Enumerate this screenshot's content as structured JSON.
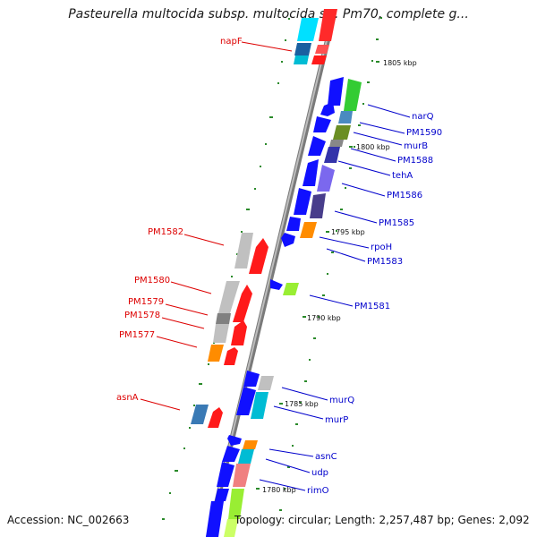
{
  "header": {
    "title": "Pasteurella multocida subsp. multocida str. Pm70, complete g..."
  },
  "footer": {
    "accession": "Accession: NC_002663",
    "summary": "Topology: circular; Length: 2,257,487 bp; Genes: 2,092"
  },
  "scale": [
    {
      "label": "1805 kbp"
    },
    {
      "label": "1800 kbp"
    },
    {
      "label": "1795 kbp"
    },
    {
      "label": "1790 kbp"
    },
    {
      "label": "1785 kbp"
    },
    {
      "label": "1780 kbp"
    }
  ],
  "colors": {
    "reverse_label": "#dd0000",
    "forward_label": "#0000cc",
    "backbone": "#888888",
    "tick": "#2a8a2a"
  },
  "genes_reverse": [
    {
      "name": "napF"
    },
    {
      "name": "PM1582"
    },
    {
      "name": "PM1580"
    },
    {
      "name": "PM1579"
    },
    {
      "name": "PM1578"
    },
    {
      "name": "PM1577"
    },
    {
      "name": "asnA"
    }
  ],
  "genes_forward": [
    {
      "name": "narQ"
    },
    {
      "name": "PM1590"
    },
    {
      "name": "murB"
    },
    {
      "name": "PM1588"
    },
    {
      "name": "tehA"
    },
    {
      "name": "PM1586"
    },
    {
      "name": "PM1585"
    },
    {
      "name": "rpoH"
    },
    {
      "name": "PM1583"
    },
    {
      "name": "PM1581"
    },
    {
      "name": "murQ"
    },
    {
      "name": "murP"
    },
    {
      "name": "asnC"
    },
    {
      "name": "udp"
    },
    {
      "name": "rimO"
    }
  ]
}
